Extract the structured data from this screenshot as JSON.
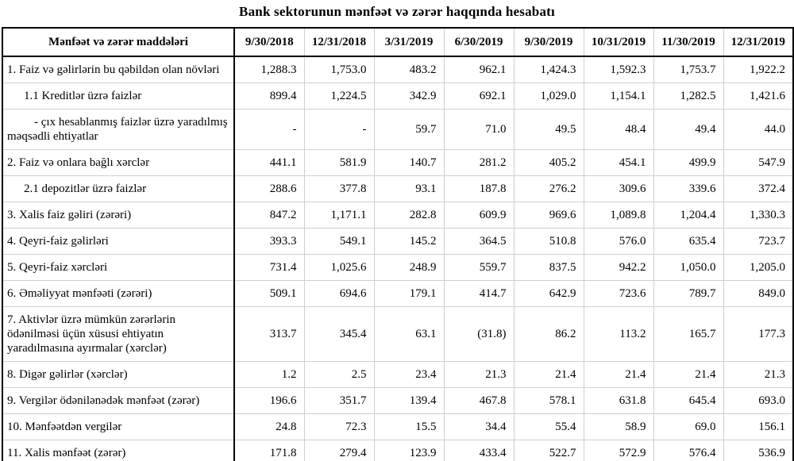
{
  "colors": {
    "background": "#ffffff",
    "text": "#000000",
    "border_strong": "#000000",
    "border_light": "#cfcfcf"
  },
  "chart_data": {
    "type": "table",
    "title": "Bank sektorunun mənfəət və zərər haqqında hesabatı",
    "columns": [
      "Mənfəət və zərər maddələri",
      "9/30/2018",
      "12/31/2018",
      "3/31/2019",
      "6/30/2019",
      "9/30/2019",
      "10/31/2019",
      "11/30/2019",
      "12/31/2019"
    ],
    "rows": [
      {
        "label": "1. Faiz və gəlirlərin bu qəbildən olan növləri",
        "indent": 0,
        "values": [
          "1,288.3",
          "1,753.0",
          "483.2",
          "962.1",
          "1,424.3",
          "1,592.3",
          "1,753.7",
          "1,922.2"
        ]
      },
      {
        "label": "1.1 Kreditlər üzrə faizlər",
        "indent": 1,
        "values": [
          "899.4",
          "1,224.5",
          "342.9",
          "692.1",
          "1,029.0",
          "1,154.1",
          "1,282.5",
          "1,421.6"
        ]
      },
      {
        "label": "- çıx hesablanmış faizlər üzrə yaradılmış məqsədli ehtiyatlar",
        "indent": 2,
        "values": [
          "-",
          "-",
          "59.7",
          "71.0",
          "49.5",
          "48.4",
          "49.4",
          "44.0"
        ]
      },
      {
        "label": "2. Faiz və onlara bağlı xərclər",
        "indent": 0,
        "values": [
          "441.1",
          "581.9",
          "140.7",
          "281.2",
          "405.2",
          "454.1",
          "499.9",
          "547.9"
        ]
      },
      {
        "label": "2.1 depozitlər üzrə faizlər",
        "indent": 1,
        "values": [
          "288.6",
          "377.8",
          "93.1",
          "187.8",
          "276.2",
          "309.6",
          "339.6",
          "372.4"
        ]
      },
      {
        "label": "3. Xalis faiz gəliri (zərəri)",
        "indent": 0,
        "values": [
          "847.2",
          "1,171.1",
          "282.8",
          "609.9",
          "969.6",
          "1,089.8",
          "1,204.4",
          "1,330.3"
        ]
      },
      {
        "label": "4. Qeyri-faiz gəlirləri",
        "indent": 0,
        "values": [
          "393.3",
          "549.1",
          "145.2",
          "364.5",
          "510.8",
          "576.0",
          "635.4",
          "723.7"
        ]
      },
      {
        "label": "5. Qeyri-faiz xərcləri",
        "indent": 0,
        "values": [
          "731.4",
          "1,025.6",
          "248.9",
          "559.7",
          "837.5",
          "942.2",
          "1,050.0",
          "1,205.0"
        ]
      },
      {
        "label": "6. Əməliyyat mənfəəti (zərəri)",
        "indent": 0,
        "values": [
          "509.1",
          "694.6",
          "179.1",
          "414.7",
          "642.9",
          "723.6",
          "789.7",
          "849.0"
        ]
      },
      {
        "label": "7. Aktivlər üzrə mümkün zərərlərin ödənilməsi üçün xüsusi ehtiyatın yaradılmasına ayırmalar (xərclər)",
        "indent": 0,
        "values": [
          "313.7",
          "345.4",
          "63.1",
          "(31.8)",
          "86.2",
          "113.2",
          "165.7",
          "177.3"
        ]
      },
      {
        "label": "8. Digər gəlirlər (xərclər)",
        "indent": 0,
        "values": [
          "1.2",
          "2.5",
          "23.4",
          "21.3",
          "21.4",
          "21.4",
          "21.4",
          "21.3"
        ]
      },
      {
        "label": "9. Vergilər ödənilənədək mənfəət (zərər)",
        "indent": 0,
        "values": [
          "196.6",
          "351.7",
          "139.4",
          "467.8",
          "578.1",
          "631.8",
          "645.4",
          "693.0"
        ]
      },
      {
        "label": "10. Mənfəətdən vergilər",
        "indent": 0,
        "values": [
          "24.8",
          "72.3",
          "15.5",
          "34.4",
          "55.4",
          "58.9",
          "69.0",
          "156.1"
        ]
      },
      {
        "label": "11. Xalis mənfəət (zərər)",
        "indent": 0,
        "values": [
          "171.8",
          "279.4",
          "123.9",
          "433.4",
          "522.7",
          "572.9",
          "576.4",
          "536.9"
        ]
      }
    ]
  }
}
